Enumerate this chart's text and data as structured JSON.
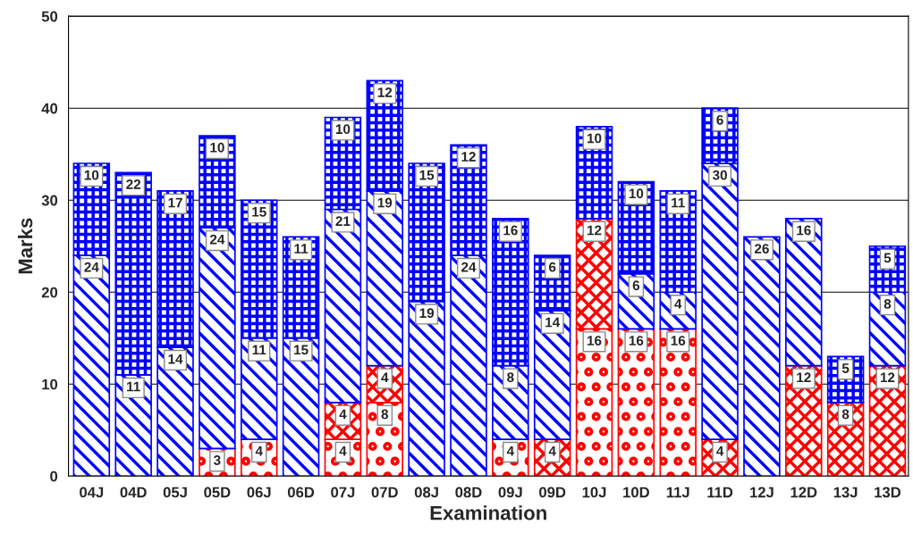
{
  "chart_data": {
    "type": "bar",
    "stacked": true,
    "xlabel": "Examination",
    "ylabel": "Marks",
    "categories": [
      "04J",
      "04D",
      "05J",
      "05D",
      "06J",
      "06D",
      "07J",
      "07D",
      "08J",
      "08D",
      "09J",
      "09D",
      "10J",
      "10D",
      "11J",
      "11D",
      "12J",
      "12D",
      "13J",
      "13D"
    ],
    "series": [
      {
        "color": "#ff0000",
        "values": [
          null,
          null,
          null,
          3,
          4,
          null,
          4,
          8,
          null,
          null,
          4,
          null,
          16,
          16,
          16,
          null,
          null,
          null,
          null,
          null
        ]
      },
      {
        "color": "#ff0000",
        "values": [
          null,
          null,
          null,
          null,
          null,
          null,
          4,
          4,
          null,
          null,
          null,
          4,
          12,
          null,
          null,
          4,
          null,
          12,
          8,
          12
        ]
      },
      {
        "color": "#0000ff",
        "values": [
          24,
          11,
          14,
          24,
          11,
          15,
          21,
          19,
          19,
          24,
          8,
          14,
          null,
          6,
          4,
          30,
          26,
          16,
          null,
          8
        ]
      },
      {
        "color": "#0000ff",
        "values": [
          10,
          22,
          17,
          10,
          15,
          11,
          10,
          12,
          15,
          12,
          16,
          6,
          10,
          10,
          11,
          6,
          null,
          null,
          5,
          5
        ]
      }
    ],
    "ylim": [
      0,
      50
    ],
    "yticks": [
      0,
      10,
      20,
      30,
      40,
      50
    ],
    "grid": "y",
    "data_labels": true,
    "legend": false
  }
}
